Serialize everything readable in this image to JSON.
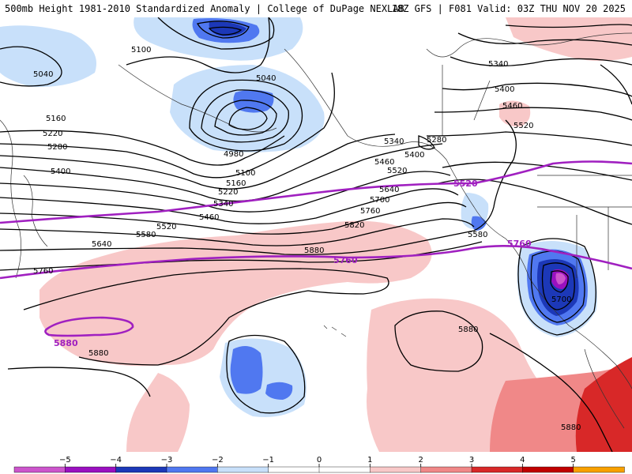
{
  "title": {
    "left": "500mb Height 1981-2010 Standardized Anomaly | College of DuPage NEXLAB",
    "right": "18Z GFS | F081 Valid: 03Z THU NOV 20 2025"
  },
  "colors": {
    "neg5": "#cc55cc",
    "neg4": "#9a10c0",
    "neg3": "#1c38b8",
    "neg2": "#5078f0",
    "neg1": "#c8e0fa",
    "pos1": "#f8c8c8",
    "pos2": "#f08888",
    "pos3": "#d82828",
    "pos4": "#c00000",
    "pos5": "#f8a000",
    "contour": "#000000",
    "highlight": "#a020c0"
  },
  "contour_labels": {
    "c5040_west": "5040",
    "c5100_bering": "5100",
    "c5040_ak": "5040",
    "c5160_w": "5160",
    "c5220_w": "5220",
    "c5280_w": "5280",
    "c5400_w": "5400",
    "c4980": "4980",
    "c5100_mid": "5100",
    "c5160_mid": "5160",
    "c5220_mid": "5220",
    "c5340_mid": "5340",
    "c5460_mid": "5460",
    "c5520_mid": "5520",
    "c5580_mid": "5580",
    "c5640_w": "5640",
    "c5760_w": "5760",
    "c5880_w": "5880",
    "c5880_sw": "5880",
    "c5820": "5820",
    "c5880_c": "5880",
    "c5760_hl": "5760",
    "c5880_hl": "5880",
    "c5340_gulf": "5340",
    "c5400_gulf": "5400",
    "c5460_gulf": "5460",
    "c5520_gulf": "5520",
    "c5280_gulf": "5280",
    "c5640_gulf": "5640",
    "c5700_gulf": "5700",
    "c5760_gulf": "5760",
    "c5580_low": "5580",
    "c5520_hl": "5520",
    "c5760_hl_e": "5760",
    "c5340_ne": "5340",
    "c5400_ne": "5400",
    "c5460_ne": "5460",
    "c5520_ne": "5520",
    "c5700_ca": "5700",
    "c5880_sub": "5880",
    "c5880_se": "5880"
  },
  "colorbar": {
    "ticks": [
      "−5",
      "−4",
      "−3",
      "−2",
      "−1",
      "0",
      "1",
      "2",
      "3",
      "4",
      "5"
    ]
  }
}
